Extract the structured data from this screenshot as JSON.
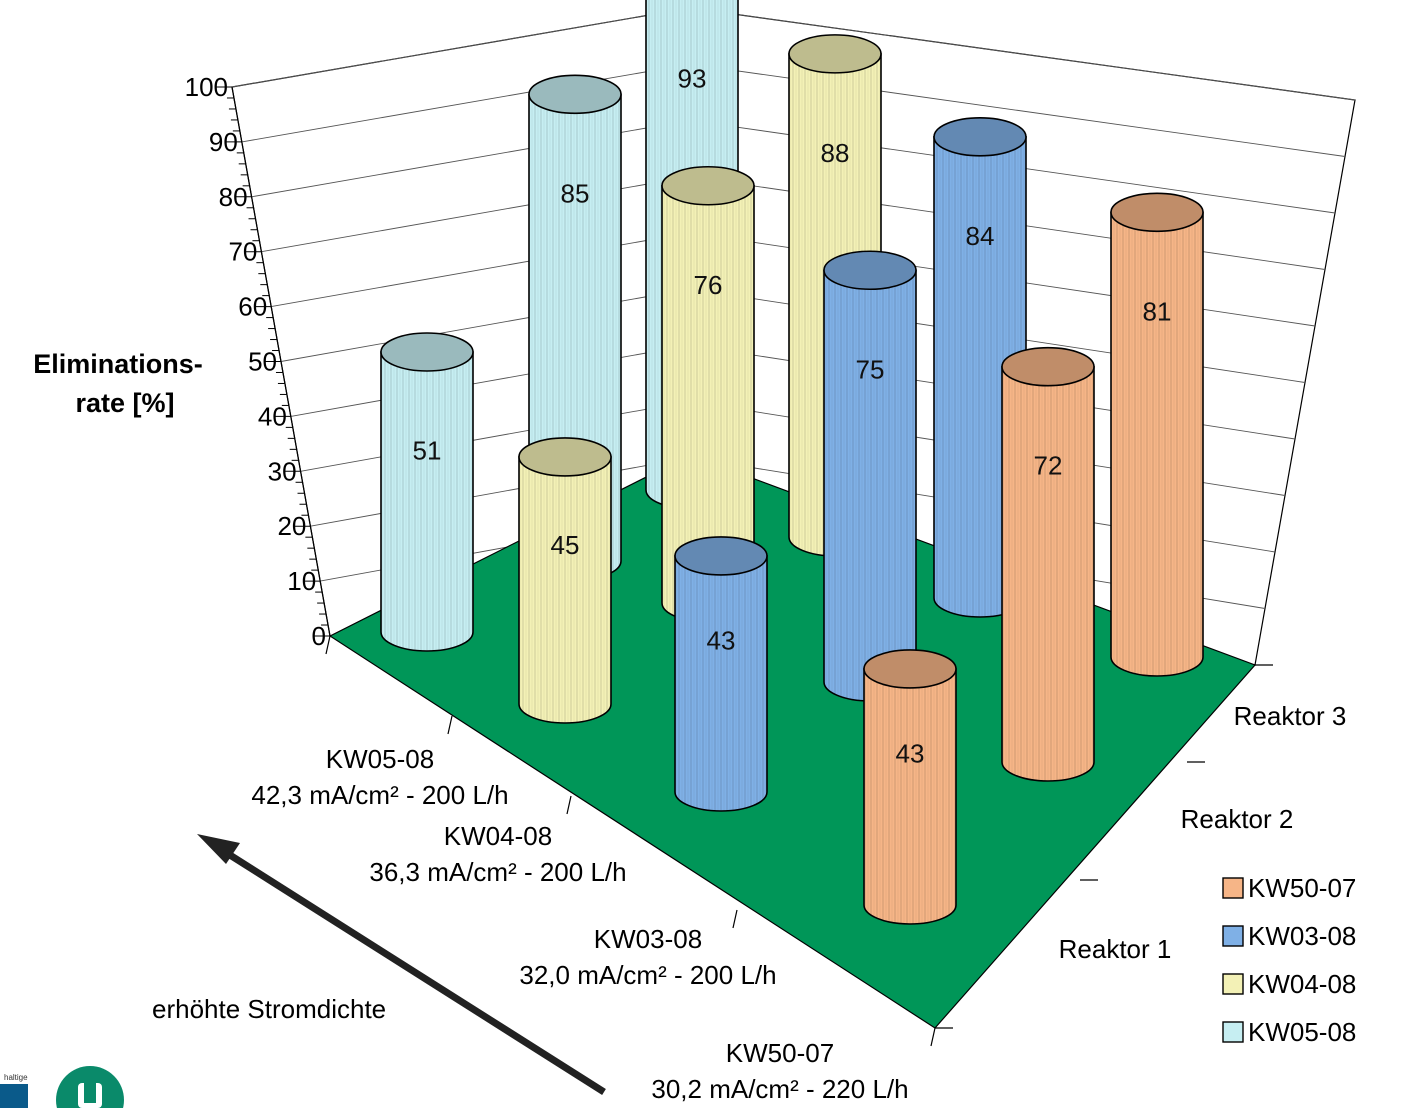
{
  "chart_data": {
    "type": "bar",
    "variant": "3d-cylinder",
    "title": "",
    "ylabel_lines": [
      "Eliminations-",
      "rate [%]"
    ],
    "ylim": [
      0,
      100
    ],
    "yticks": [
      "0",
      "10",
      "20",
      "30",
      "40",
      "50",
      "60",
      "70",
      "80",
      "90",
      "100"
    ],
    "categories": [
      {
        "line1": "KW50-07",
        "line2": "30,2 mA/cm² - 220 L/h"
      },
      {
        "line1": "KW03-08",
        "line2": "32,0 mA/cm² - 200 L/h"
      },
      {
        "line1": "KW04-08",
        "line2": "36,3 mA/cm² - 200 L/h"
      },
      {
        "line1": "KW05-08",
        "line2": "42,3 mA/cm² - 200 L/h"
      }
    ],
    "depth_categories": [
      "Reaktor 1",
      "Reaktor 2",
      "Reaktor 3"
    ],
    "series": [
      {
        "name": "KW50-07",
        "color": "#f6b587",
        "values": {
          "Reaktor 1": 43,
          "Reaktor 2": 72,
          "Reaktor 3": 81
        }
      },
      {
        "name": "KW03-08",
        "color": "#7fb0e6",
        "values": {
          "Reaktor 1": 43,
          "Reaktor 2": 75,
          "Reaktor 3": 84
        }
      },
      {
        "name": "KW04-08",
        "color": "#f3f1b6",
        "values": {
          "Reaktor 1": 45,
          "Reaktor 2": 76,
          "Reaktor 3": 88
        }
      },
      {
        "name": "KW05-08",
        "color": "#c6eef2",
        "values": {
          "Reaktor 1": 51,
          "Reaktor 2": 85,
          "Reaktor 3": 93
        }
      }
    ],
    "floor_color": "#009658",
    "annotation": "erhöhte Stromdichte",
    "legend_position": "bottom-right"
  },
  "colors": {
    "wall_line": "#000000",
    "grid": "#555555"
  },
  "logo": {
    "small_text": "haltige",
    "icon": "university-logo-icon"
  }
}
